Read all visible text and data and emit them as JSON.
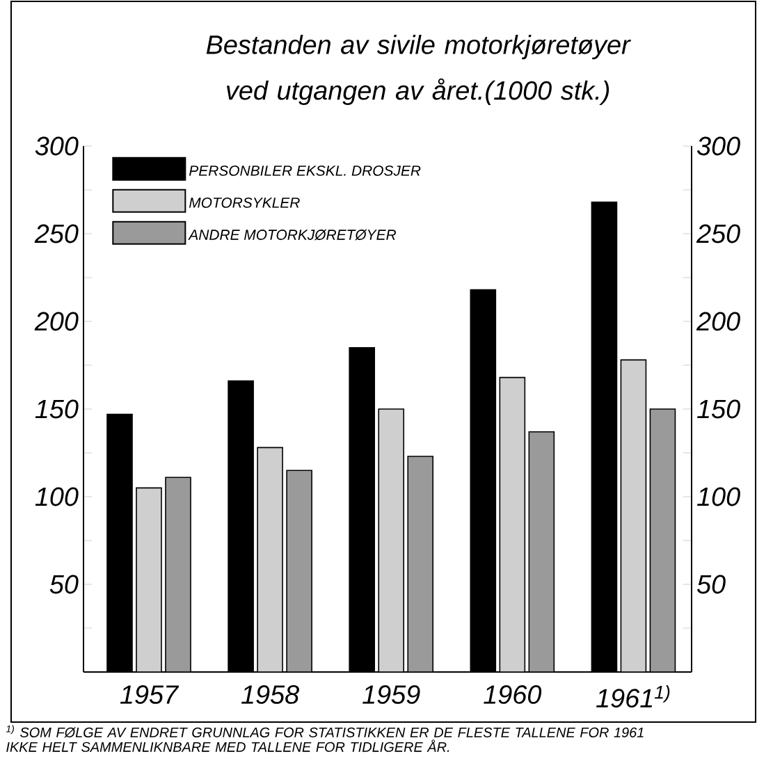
{
  "chart_data": {
    "type": "bar",
    "title": "Bestanden av sivile motorkjøretøyer ved utgangen av året.(1000 stk.)",
    "categories": [
      "1957",
      "1958",
      "1959",
      "1960",
      "1961$^{1)}$"
    ],
    "series": [
      {
        "name": "PERSONBILER EKSKL. DROSJER",
        "color": "#000000",
        "values": [
          147,
          166,
          185,
          218,
          268
        ]
      },
      {
        "name": "MOTORSYKLER",
        "color": "#cfcfcf",
        "values": [
          105,
          128,
          150,
          168,
          178
        ]
      },
      {
        "name": "ANDRE MOTORKJØRETØYER",
        "color": "#9a9a9a",
        "values": [
          111,
          115,
          123,
          137,
          150
        ]
      }
    ],
    "ylim": [
      0,
      300
    ],
    "yticks": [
      {
        "value": 25,
        "label": null
      },
      50,
      {
        "value": 75,
        "label": null
      },
      100,
      {
        "value": 125,
        "label": null
      },
      150,
      {
        "value": 175,
        "label": null
      },
      200,
      {
        "value": 225,
        "label": null
      },
      250,
      {
        "value": 275,
        "label": null
      },
      300
    ],
    "y2lim": [
      0,
      300
    ],
    "y2ticks": [
      {
        "value": 25,
        "label": null
      },
      50,
      {
        "value": 75,
        "label": null
      },
      100,
      {
        "value": 125,
        "label": null
      },
      150,
      {
        "value": 175,
        "label": null
      },
      200,
      {
        "value": 225,
        "label": null
      },
      250,
      {
        "value": 275,
        "label": null
      },
      300
    ],
    "grid": false,
    "legend": "top left",
    "annotations": [
      "$^{1)}$ SOM FØLGE AV ENDRET GRUNNLAG FOR STATISTIKKEN ER DE FLESTE TALLENE FOR 1961 IKKE HELT SAMMENLIKNBARE MED TALLENE FOR TIDLIGERE ÅR."
    ]
  }
}
